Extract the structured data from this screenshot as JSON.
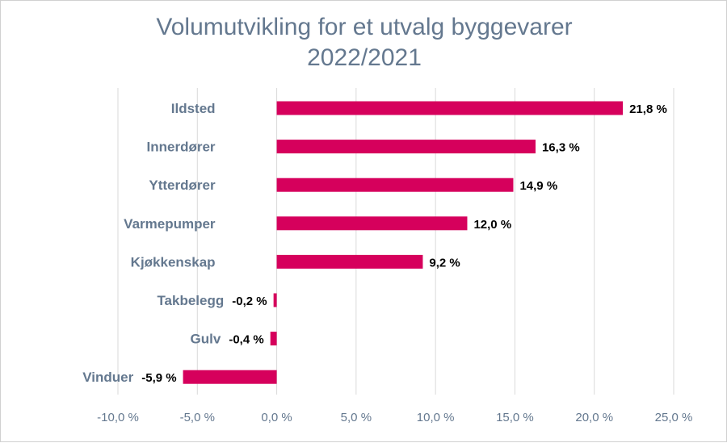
{
  "chart_data": {
    "type": "bar",
    "orientation": "horizontal",
    "title_lines": [
      "Volumutvikling for et utvalg byggevarer",
      "2022/2021"
    ],
    "categories": [
      "Ildsted",
      "Innerdører",
      "Ytterdører",
      "Varmepumper",
      "Kjøkkenskap",
      "Takbelegg",
      "Gulv",
      "Vinduer"
    ],
    "values": [
      21.8,
      16.3,
      14.9,
      12.0,
      9.2,
      -0.2,
      -0.4,
      -5.9
    ],
    "data_labels": [
      "21,8 %",
      "16,3 %",
      "14,9 %",
      "12,0 %",
      "9,2 %",
      "-0,2 %",
      "-0,4 %",
      "-5,9 %"
    ],
    "xlim": [
      -10,
      25
    ],
    "x_ticks": [
      -10,
      -5,
      0,
      5,
      10,
      15,
      20,
      25
    ],
    "x_tick_labels": [
      "-10,0 %",
      "-5,0 %",
      "0,0 %",
      "5,0 %",
      "10,0 %",
      "15,0 %",
      "20,0 %",
      "25,0 %"
    ],
    "grid": true,
    "legend": false,
    "colors": {
      "bar": "#d6005c",
      "title": "#64788f",
      "axis_text": "#64788f",
      "grid": "#d9d9d9",
      "data_label": "#000000"
    }
  }
}
